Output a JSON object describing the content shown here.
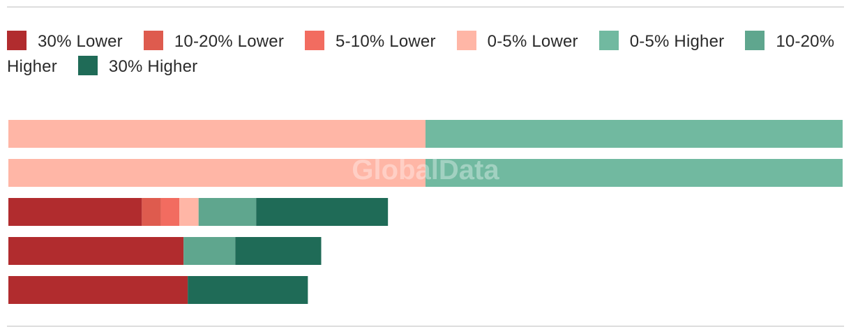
{
  "chart_data": {
    "type": "bar",
    "orientation": "horizontal",
    "stacked": true,
    "title": "",
    "xlabel": "",
    "ylabel": "",
    "categories": [
      "",
      "",
      "",
      "",
      ""
    ],
    "xlim": [
      0,
      100
    ],
    "grid": false,
    "legend_position": "top",
    "watermark": "GlobalData",
    "series": [
      {
        "name": "30% Lower",
        "color": "#b12c2e",
        "values": [
          0,
          0,
          16,
          21,
          21.5
        ]
      },
      {
        "name": "10-20% Lower",
        "color": "#de5b4e",
        "values": [
          0,
          0,
          2.3,
          0,
          0
        ]
      },
      {
        "name": "5-10% Lower",
        "color": "#f26c60",
        "values": [
          0,
          0,
          2.2,
          0,
          0
        ]
      },
      {
        "name": "0-5% Lower",
        "color": "#ffb6a6",
        "values": [
          50,
          50,
          2.3,
          0,
          0
        ]
      },
      {
        "name": "0-5% Higher",
        "color": "#71b9a0",
        "values": [
          50,
          50,
          0,
          0,
          0
        ]
      },
      {
        "name": "10-20% Higher",
        "color": "#5fa68e",
        "values": [
          0,
          0,
          6.9,
          6.2,
          0
        ]
      },
      {
        "name": "30% Higher",
        "color": "#1f6b57",
        "values": [
          0,
          0,
          15.8,
          10.3,
          14.4
        ]
      }
    ]
  }
}
